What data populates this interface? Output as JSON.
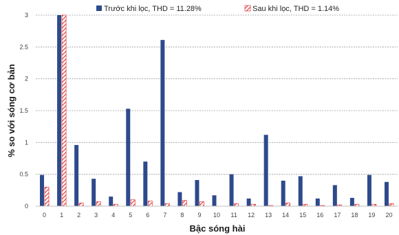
{
  "chart_data": {
    "type": "bar",
    "xlabel": "Bậc sóng hài",
    "ylabel": "% so với sóng cơ bản",
    "ylim": [
      0,
      3
    ],
    "yticks": [
      "0",
      "0.5",
      "1",
      "1.5",
      "2",
      "2.5",
      "3"
    ],
    "grid": true,
    "legend_position": "top",
    "categories": [
      "0",
      "1",
      "2",
      "3",
      "4",
      "5",
      "6",
      "7",
      "8",
      "9",
      "10",
      "11",
      "12",
      "13",
      "14",
      "15",
      "16",
      "17",
      "18",
      "19",
      "20"
    ],
    "series": [
      {
        "name": "Trước khi lọc, THD = 11.28%",
        "color": "#2E4A8C",
        "pattern": "solid",
        "values": [
          0.49,
          3.0,
          0.96,
          0.43,
          0.15,
          1.53,
          0.7,
          2.61,
          0.22,
          0.41,
          0.17,
          0.5,
          0.12,
          1.12,
          0.4,
          0.47,
          0.12,
          0.33,
          0.13,
          0.49,
          0.38
        ]
      },
      {
        "name": "Sau khi lọc, THD = 1.14%",
        "color": "#E03030",
        "pattern": "hatched",
        "values": [
          0.3,
          3.0,
          0.05,
          0.07,
          0.03,
          0.1,
          0.08,
          0.04,
          0.09,
          0.07,
          0.0,
          0.04,
          0.03,
          0.01,
          0.05,
          0.03,
          0.01,
          0.02,
          0.03,
          0.03,
          0.04
        ]
      }
    ]
  }
}
